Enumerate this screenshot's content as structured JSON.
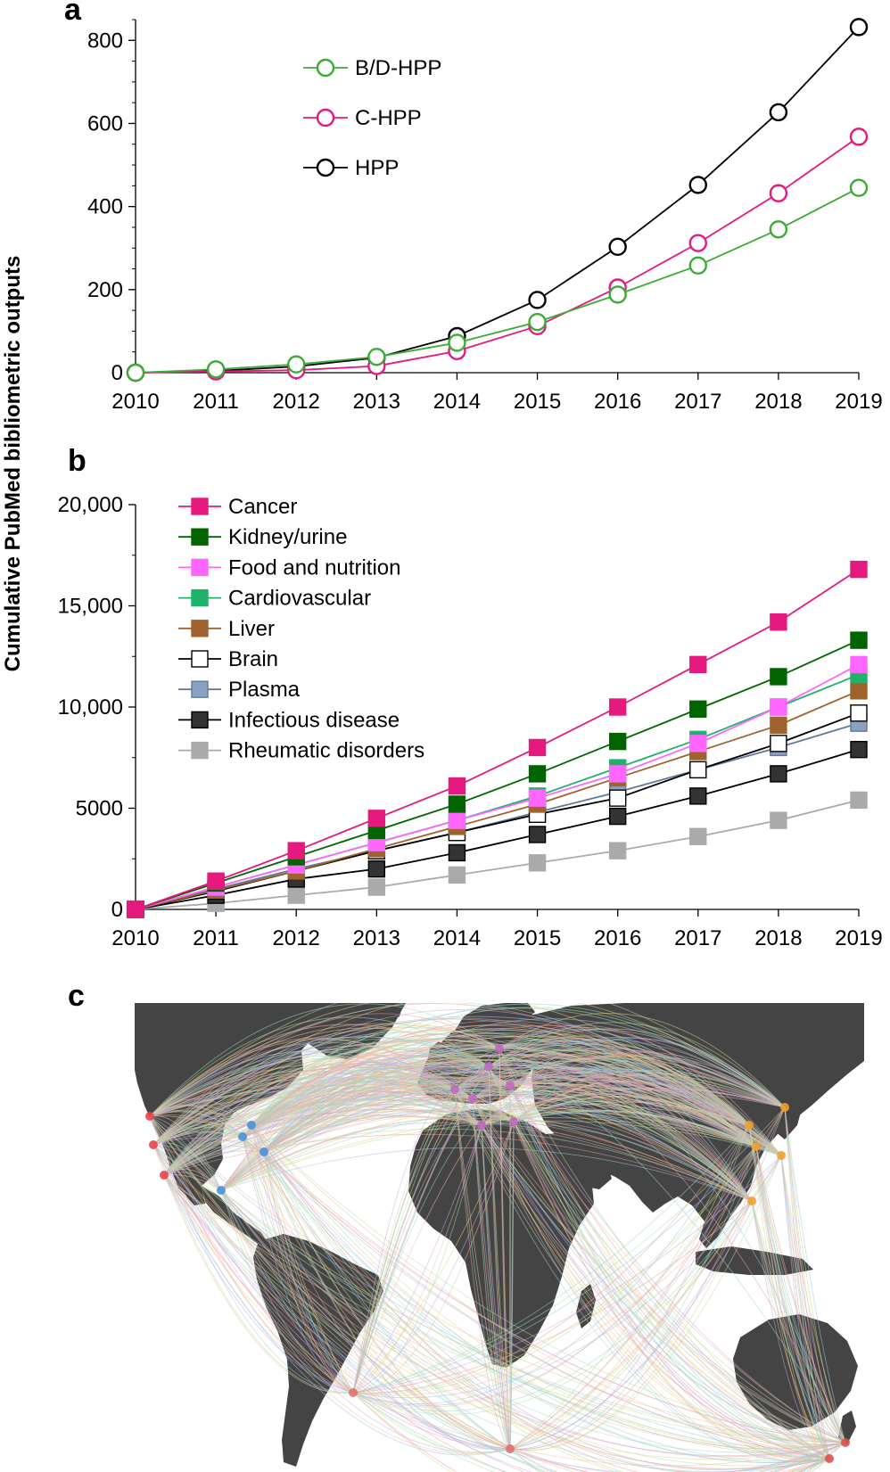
{
  "figure": {
    "shared_ylabel": "Cumulative PubMed bibliometric outputs"
  },
  "chart_data": [
    {
      "panel": "a",
      "type": "line",
      "title": "",
      "xlabel": "",
      "ylabel": "Cumulative PubMed bibliometric outputs",
      "x": [
        2010,
        2011,
        2012,
        2013,
        2014,
        2015,
        2016,
        2017,
        2018,
        2019
      ],
      "x_tick_labels": [
        "2010",
        "2011",
        "2012",
        "2013",
        "2014",
        "2015",
        "2016",
        "2017",
        "2018",
        "2019"
      ],
      "xlim": [
        2010,
        2019
      ],
      "ylim": [
        0,
        850
      ],
      "y_ticks": [
        0,
        200,
        400,
        600,
        800
      ],
      "y_tick_labels": [
        "0",
        "200",
        "400",
        "600",
        "800"
      ],
      "marker": "open-circle",
      "legend_position": "top-left",
      "series": [
        {
          "name": "B/D-HPP",
          "color": "#3bab35",
          "values": [
            0,
            8,
            20,
            38,
            72,
            122,
            188,
            258,
            345,
            445
          ]
        },
        {
          "name": "C-HPP",
          "color": "#e6197f",
          "values": [
            0,
            3,
            6,
            16,
            52,
            112,
            205,
            312,
            432,
            568
          ]
        },
        {
          "name": "HPP",
          "color": "#000000",
          "values": [
            0,
            4,
            15,
            36,
            88,
            175,
            303,
            452,
            627,
            832
          ]
        }
      ]
    },
    {
      "panel": "b",
      "type": "line",
      "title": "",
      "xlabel": "",
      "ylabel": "Cumulative PubMed bibliometric outputs",
      "x": [
        2010,
        2011,
        2012,
        2013,
        2014,
        2015,
        2016,
        2017,
        2018,
        2019
      ],
      "x_tick_labels": [
        "2010",
        "2011",
        "2012",
        "2013",
        "2014",
        "2015",
        "2016",
        "2017",
        "2018",
        "2019"
      ],
      "xlim": [
        2010,
        2019
      ],
      "ylim": [
        0,
        20000
      ],
      "y_ticks": [
        0,
        5000,
        10000,
        15000,
        20000
      ],
      "y_tick_labels": [
        "0",
        "5000",
        "10,000",
        "15,000",
        "20,000"
      ],
      "marker": "square",
      "legend_position": "top-left",
      "series": [
        {
          "name": "Cancer",
          "color": "#e6197f",
          "fill": "#e6197f",
          "values": [
            0,
            1400,
            2900,
            4500,
            6100,
            8000,
            10000,
            12100,
            14200,
            16800
          ]
        },
        {
          "name": "Kidney/urine",
          "color": "#006400",
          "fill": "#006400",
          "values": [
            0,
            1300,
            2600,
            3900,
            5200,
            6700,
            8300,
            9900,
            11500,
            13300
          ]
        },
        {
          "name": "Food and nutrition",
          "color": "#ff66ff",
          "fill": "#ff66ff",
          "values": [
            0,
            1100,
            2200,
            3300,
            4400,
            5500,
            6700,
            8200,
            10000,
            12100
          ]
        },
        {
          "name": "Cardiovascular",
          "color": "#1db36b",
          "fill": "#1db36b",
          "values": [
            0,
            1100,
            2200,
            3300,
            4400,
            5600,
            7000,
            8400,
            10000,
            11600
          ]
        },
        {
          "name": "Liver",
          "color": "#a0622d",
          "fill": "#a0622d",
          "values": [
            0,
            950,
            1900,
            3000,
            4100,
            5200,
            6500,
            7800,
            9100,
            10800
          ]
        },
        {
          "name": "Brain",
          "color": "#000000",
          "fill": "#ffffff",
          "values": [
            0,
            900,
            1900,
            2900,
            3800,
            4700,
            5500,
            6900,
            8200,
            9700
          ]
        },
        {
          "name": "Plasma",
          "color": "#5f7a99",
          "fill": "#8aa1c2",
          "values": [
            0,
            1000,
            2000,
            2900,
            3800,
            4800,
            5800,
            6900,
            8000,
            9200
          ]
        },
        {
          "name": "Infectious disease",
          "color": "#000000",
          "fill": "#333333",
          "values": [
            0,
            700,
            1500,
            2000,
            2800,
            3700,
            4600,
            5600,
            6700,
            7900
          ]
        },
        {
          "name": "Rheumatic disorders",
          "color": "#aaaaaa",
          "fill": "#aaaaaa",
          "values": [
            0,
            300,
            700,
            1100,
            1700,
            2300,
            2900,
            3600,
            4400,
            5400
          ]
        }
      ]
    }
  ],
  "panels": [
    {
      "letter": "a"
    },
    {
      "letter": "b"
    },
    {
      "letter": "c"
    }
  ],
  "map": {
    "ocean_color": "#ffffff",
    "land_color": "#444444",
    "hubs": [
      {
        "name": "west-coast-us",
        "color": "#e8444a"
      },
      {
        "name": "east-coast-us",
        "color": "#4a90d9"
      },
      {
        "name": "europe",
        "color": "#c069c0"
      },
      {
        "name": "east-asia",
        "color": "#f0a030"
      },
      {
        "name": "south-america",
        "color": "#e07070"
      },
      {
        "name": "australia",
        "color": "#e05050"
      }
    ]
  }
}
